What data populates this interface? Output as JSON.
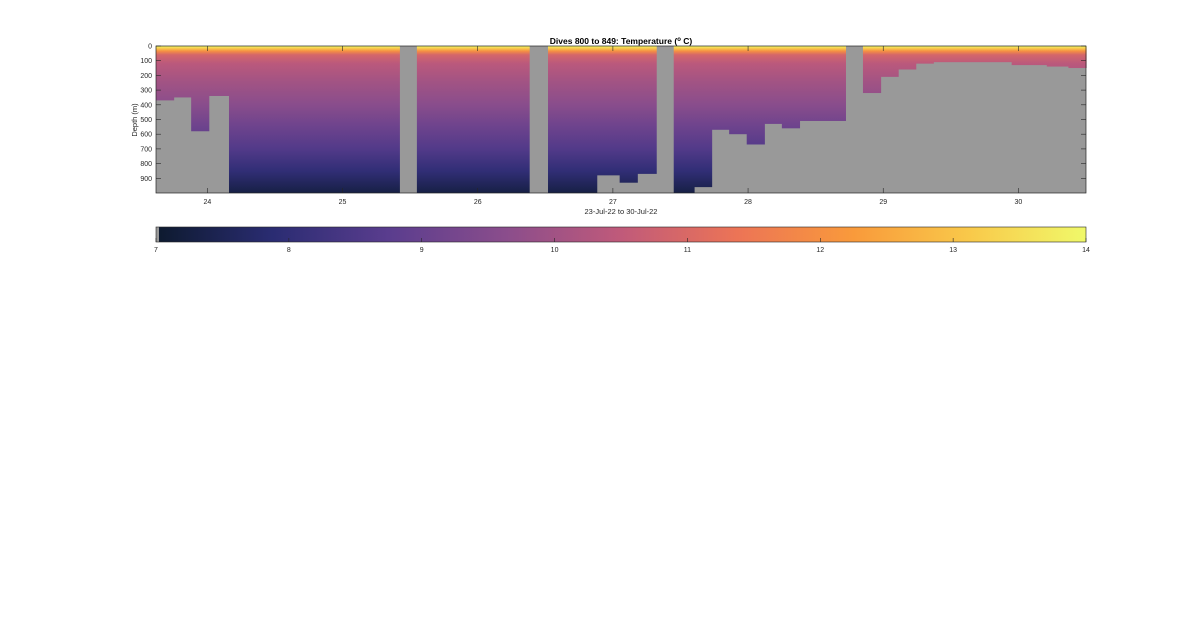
{
  "chart_data": {
    "type": "heatmap",
    "title": "Dives 800 to 849: Temperature (",
    "title_superscript": "o",
    "title_unit": " C)",
    "xlabel": "23-Jul-22 to 30-Jul-22",
    "ylabel": "Depth (m)",
    "x_ticks": [
      "24",
      "25",
      "26",
      "27",
      "28",
      "29",
      "30"
    ],
    "x_tick_days": [
      24,
      25,
      26,
      27,
      28,
      29,
      30
    ],
    "xlim": [
      23.62,
      30.5
    ],
    "y_ticks": [
      "0",
      "100",
      "200",
      "300",
      "400",
      "500",
      "600",
      "700",
      "800",
      "900"
    ],
    "y_tick_values": [
      0,
      100,
      200,
      300,
      400,
      500,
      600,
      700,
      800,
      900
    ],
    "ylim": [
      0,
      1000
    ],
    "y_reversed": true,
    "colorbar": {
      "ticks": [
        "7",
        "8",
        "9",
        "10",
        "11",
        "12",
        "13",
        "14"
      ],
      "tick_values": [
        7,
        8,
        9,
        10,
        11,
        12,
        13,
        14
      ],
      "range": [
        7,
        14
      ],
      "colormap": [
        "#0d1a2e",
        "#2a2c72",
        "#5a3d8e",
        "#8a4d8c",
        "#c05a7a",
        "#ec7456",
        "#f99a3b",
        "#f9c94a",
        "#f0f96a"
      ]
    },
    "nodata_color": "#999999",
    "profiles": [
      {
        "x0": 23.62,
        "x1": 23.75,
        "bottom": 370
      },
      {
        "x0": 23.75,
        "x1": 23.88,
        "bottom": 350
      },
      {
        "x0": 23.88,
        "x1": 24.01,
        "bottom": 580
      },
      {
        "x0": 24.01,
        "x1": 24.16,
        "bottom": 340
      },
      {
        "x0": 24.16,
        "x1": 24.37,
        "bottom": 1000
      },
      {
        "x0": 24.37,
        "x1": 24.58,
        "bottom": 1000
      },
      {
        "x0": 24.58,
        "x1": 24.8,
        "bottom": 1000
      },
      {
        "x0": 24.8,
        "x1": 25.02,
        "bottom": 1000
      },
      {
        "x0": 25.02,
        "x1": 25.23,
        "bottom": 1000
      },
      {
        "x0": 25.23,
        "x1": 25.42,
        "bottom": 1000
      },
      {
        "x0": 25.55,
        "x1": 25.76,
        "bottom": 1000
      },
      {
        "x0": 25.76,
        "x1": 25.97,
        "bottom": 1000
      },
      {
        "x0": 25.97,
        "x1": 26.18,
        "bottom": 1000
      },
      {
        "x0": 26.18,
        "x1": 26.38,
        "bottom": 1000
      },
      {
        "x0": 26.52,
        "x1": 26.7,
        "bottom": 1000
      },
      {
        "x0": 26.7,
        "x1": 26.88,
        "bottom": 1000
      },
      {
        "x0": 26.88,
        "x1": 27.05,
        "bottom": 880
      },
      {
        "x0": 27.05,
        "x1": 27.18,
        "bottom": 930
      },
      {
        "x0": 27.18,
        "x1": 27.32,
        "bottom": 870
      },
      {
        "x0": 27.45,
        "x1": 27.6,
        "bottom": 1000
      },
      {
        "x0": 27.6,
        "x1": 27.73,
        "bottom": 960
      },
      {
        "x0": 27.73,
        "x1": 27.86,
        "bottom": 570
      },
      {
        "x0": 27.86,
        "x1": 27.99,
        "bottom": 600
      },
      {
        "x0": 27.99,
        "x1": 28.12,
        "bottom": 670
      },
      {
        "x0": 28.12,
        "x1": 28.25,
        "bottom": 530
      },
      {
        "x0": 28.25,
        "x1": 28.38,
        "bottom": 560
      },
      {
        "x0": 28.38,
        "x1": 28.72,
        "bottom": 510
      },
      {
        "x0": 28.85,
        "x1": 28.98,
        "bottom": 320
      },
      {
        "x0": 28.98,
        "x1": 29.11,
        "bottom": 210
      },
      {
        "x0": 29.11,
        "x1": 29.24,
        "bottom": 160
      },
      {
        "x0": 29.24,
        "x1": 29.37,
        "bottom": 120
      },
      {
        "x0": 29.37,
        "x1": 29.95,
        "bottom": 110
      },
      {
        "x0": 29.95,
        "x1": 30.21,
        "bottom": 130
      },
      {
        "x0": 30.21,
        "x1": 30.37,
        "bottom": 140
      },
      {
        "x0": 30.37,
        "x1": 30.5,
        "bottom": 150
      }
    ],
    "temperature_profile": [
      {
        "depth": 0,
        "temp": 14.0
      },
      {
        "depth": 15,
        "temp": 13.2
      },
      {
        "depth": 35,
        "temp": 12.0
      },
      {
        "depth": 60,
        "temp": 10.9
      },
      {
        "depth": 120,
        "temp": 10.4
      },
      {
        "depth": 250,
        "temp": 10.0
      },
      {
        "depth": 400,
        "temp": 9.6
      },
      {
        "depth": 550,
        "temp": 9.1
      },
      {
        "depth": 700,
        "temp": 8.6
      },
      {
        "depth": 850,
        "temp": 8.0
      },
      {
        "depth": 1000,
        "temp": 7.3
      }
    ]
  }
}
